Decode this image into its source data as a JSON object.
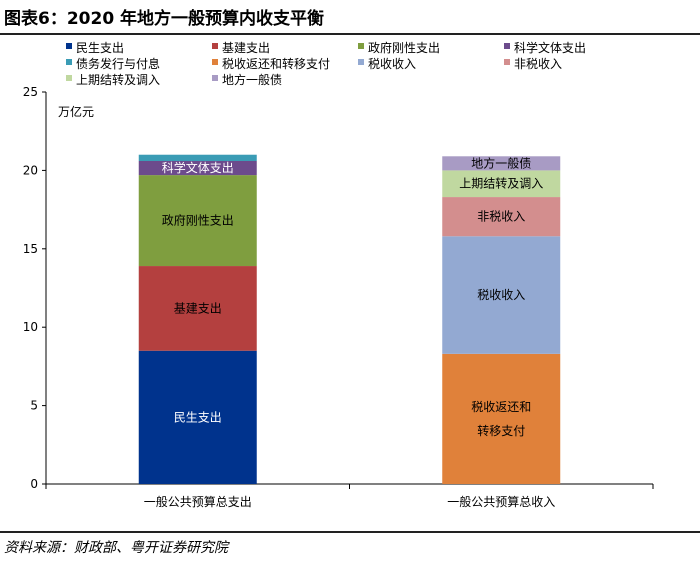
{
  "title": "图表6：2020 年地方一般预算内收支平衡",
  "source": "资料来源：财政部、粤开证券研究院",
  "chart_data": {
    "type": "bar",
    "stacked": true,
    "ylabel": "万亿元",
    "ylim": [
      0,
      25
    ],
    "yticks": [
      0,
      5,
      10,
      15,
      20,
      25
    ],
    "categories": [
      "一般公共预算总支出",
      "一般公共预算总收入"
    ],
    "legend_position": "top",
    "series": [
      {
        "name": "民生支出",
        "color": "#00338d",
        "values": [
          8.5,
          0
        ],
        "label_lines": [
          "民生支出"
        ]
      },
      {
        "name": "基建支出",
        "color": "#b4403f",
        "values": [
          5.4,
          0
        ],
        "label_lines": [
          "基建支出"
        ]
      },
      {
        "name": "政府刚性支出",
        "color": "#7f9e3f",
        "values": [
          5.8,
          0
        ],
        "label_lines": [
          "政府刚性支出"
        ]
      },
      {
        "name": "科学文体支出",
        "color": "#6c4b8c",
        "values": [
          0.9,
          0
        ],
        "label_lines": [
          "科学文体支出"
        ]
      },
      {
        "name": "债务发行与付息",
        "color": "#3a9cb5",
        "values": [
          0.4,
          0
        ],
        "label_lines": []
      },
      {
        "name": "税收返还和转移支付",
        "color": "#e0813a",
        "values": [
          0,
          8.3
        ],
        "label_lines": [
          "税收返还和",
          "转移支付"
        ]
      },
      {
        "name": "税收收入",
        "color": "#93a9d2",
        "values": [
          0,
          7.5
        ],
        "label_lines": [
          "税收收入"
        ]
      },
      {
        "name": "非税收入",
        "color": "#d38e8e",
        "values": [
          0,
          2.5
        ],
        "label_lines": [
          "非税收入"
        ]
      },
      {
        "name": "上期结转及调入",
        "color": "#c0d8a0",
        "values": [
          0,
          1.7
        ],
        "label_lines": [
          "上期结转及调入"
        ]
      },
      {
        "name": "地方一般债",
        "color": "#a89bc4",
        "values": [
          0,
          0.9
        ],
        "label_lines": [
          "地方一般债"
        ]
      }
    ]
  }
}
